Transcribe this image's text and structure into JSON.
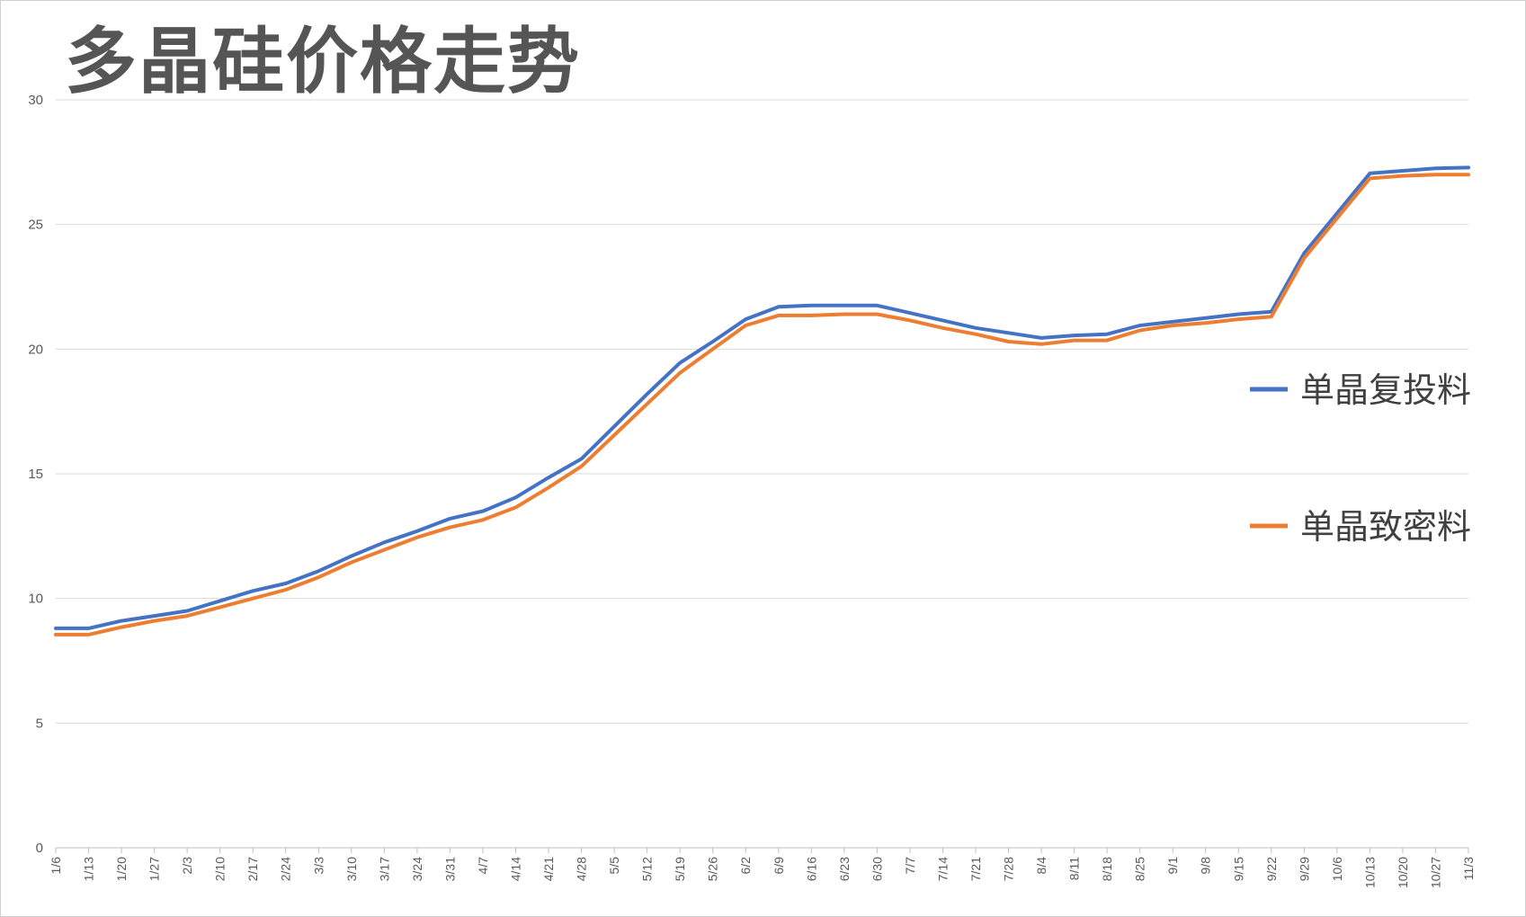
{
  "chart_data": {
    "type": "line",
    "title": "多晶硅价格走势",
    "xlabel": "",
    "ylabel": "",
    "ylim": [
      0,
      30
    ],
    "yticks": [
      0,
      5,
      10,
      15,
      20,
      25,
      30
    ],
    "grid": true,
    "legend_position": "right",
    "categories": [
      "1/6",
      "1/13",
      "1/20",
      "1/27",
      "2/3",
      "2/10",
      "2/17",
      "2/24",
      "3/3",
      "3/10",
      "3/17",
      "3/24",
      "3/31",
      "4/7",
      "4/14",
      "4/21",
      "4/28",
      "5/5",
      "5/12",
      "5/19",
      "5/26",
      "6/2",
      "6/9",
      "6/16",
      "6/23",
      "6/30",
      "7/7",
      "7/14",
      "7/21",
      "7/28",
      "8/4",
      "8/11",
      "8/18",
      "8/25",
      "9/1",
      "9/8",
      "9/15",
      "9/22",
      "9/29",
      "10/6",
      "10/13",
      "10/20",
      "10/27",
      "11/3"
    ],
    "series": [
      {
        "name": "单晶复投料",
        "color": "#4472c4",
        "values": [
          8.8,
          8.8,
          9.1,
          9.3,
          9.5,
          9.9,
          10.3,
          10.6,
          11.1,
          11.7,
          12.25,
          12.7,
          13.2,
          13.5,
          14.05,
          14.85,
          15.6,
          16.9,
          18.2,
          19.45,
          20.3,
          21.2,
          21.7,
          21.75,
          21.75,
          21.75,
          21.45,
          21.15,
          20.85,
          20.65,
          20.45,
          20.55,
          20.6,
          20.95,
          21.1,
          21.25,
          21.4,
          21.5,
          23.85,
          25.45,
          27.05,
          27.15,
          27.25,
          27.28
        ]
      },
      {
        "name": "单晶致密料",
        "color": "#ed7d31",
        "values": [
          8.55,
          8.55,
          8.85,
          9.1,
          9.3,
          9.65,
          10.0,
          10.35,
          10.85,
          11.45,
          11.95,
          12.45,
          12.85,
          13.15,
          13.65,
          14.45,
          15.3,
          16.55,
          17.8,
          19.05,
          20.0,
          20.95,
          21.35,
          21.35,
          21.4,
          21.4,
          21.15,
          20.85,
          20.6,
          20.3,
          20.2,
          20.35,
          20.35,
          20.75,
          20.95,
          21.05,
          21.2,
          21.3,
          23.65,
          25.25,
          26.85,
          26.95,
          27.0,
          27.0
        ]
      }
    ]
  }
}
